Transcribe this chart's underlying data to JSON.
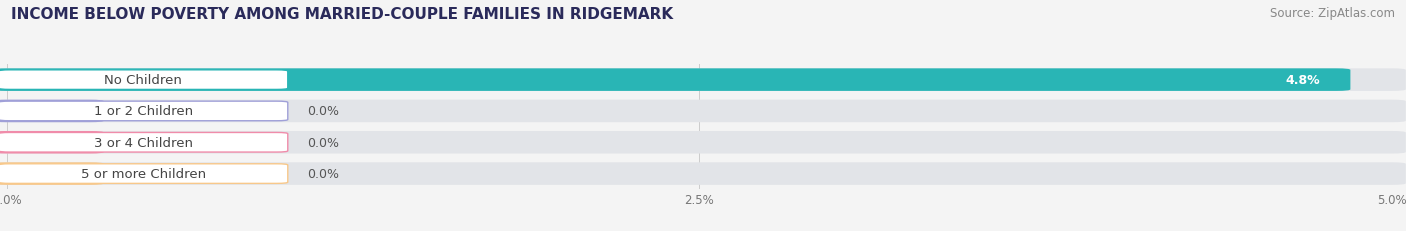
{
  "title": "INCOME BELOW POVERTY AMONG MARRIED-COUPLE FAMILIES IN RIDGEMARK",
  "source": "Source: ZipAtlas.com",
  "categories": [
    "No Children",
    "1 or 2 Children",
    "3 or 4 Children",
    "5 or more Children"
  ],
  "values": [
    4.8,
    0.0,
    0.0,
    0.0
  ],
  "bar_colors": [
    "#29b5b5",
    "#a0a0d8",
    "#f08caa",
    "#f8c88a"
  ],
  "xlim": [
    0,
    5.0
  ],
  "xticks": [
    0.0,
    2.5,
    5.0
  ],
  "xtick_labels": [
    "0.0%",
    "2.5%",
    "5.0%"
  ],
  "background_color": "#f4f4f4",
  "bar_bg_color": "#e2e4e8",
  "title_fontsize": 11,
  "source_fontsize": 8.5,
  "label_fontsize": 9.5,
  "value_fontsize": 9
}
